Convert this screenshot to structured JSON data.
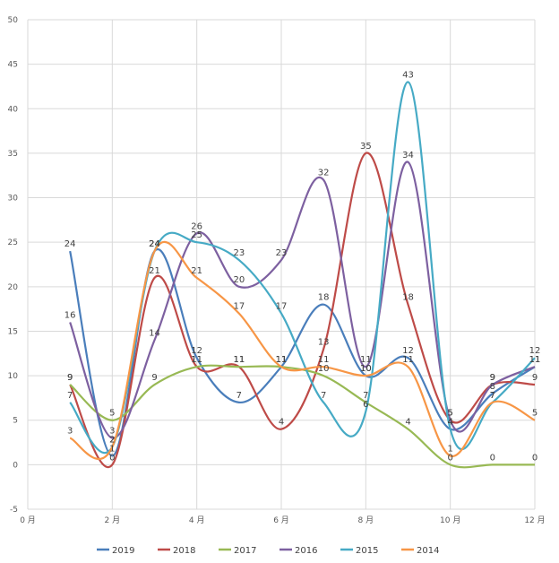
{
  "chart_data": {
    "type": "line",
    "title": "",
    "xlabel": "",
    "ylabel": "",
    "xlim": [
      0,
      12
    ],
    "ylim": [
      -5,
      50
    ],
    "x_ticks": [
      0,
      2,
      4,
      6,
      8,
      10,
      12
    ],
    "x_tick_labels": [
      "0 月",
      "2 月",
      "4 月",
      "6 月",
      "8 月",
      "10 月",
      "12 月"
    ],
    "y_ticks": [
      -5,
      0,
      5,
      10,
      15,
      20,
      25,
      30,
      35,
      40,
      45,
      50
    ],
    "y_tick_labels": [
      "-5",
      "0",
      "5",
      "10",
      "15",
      "20",
      "25",
      "30",
      "35",
      "40",
      "45",
      "50"
    ],
    "grid": true,
    "legend_position": "bottom",
    "x": [
      1,
      2,
      3,
      4,
      5,
      6,
      7,
      8,
      9,
      10,
      11,
      12
    ],
    "series": [
      {
        "name": "2019",
        "color": "#4a7ebb",
        "values": [
          24,
          1,
          24,
          12,
          7,
          11,
          18,
          10,
          12,
          4,
          8,
          11
        ]
      },
      {
        "name": "2018",
        "color": "#be4b48",
        "values": [
          9,
          0,
          21,
          11,
          11,
          4,
          13,
          35,
          18,
          5,
          9,
          9
        ]
      },
      {
        "name": "2017",
        "color": "#98b954",
        "values": [
          9,
          5,
          9,
          11,
          11,
          11,
          10,
          7,
          4,
          0,
          0,
          0
        ]
      },
      {
        "name": "2016",
        "color": "#7d60a0",
        "values": [
          16,
          3,
          14,
          26,
          20,
          23,
          32,
          11,
          34,
          5,
          9,
          11
        ]
      },
      {
        "name": "2015",
        "color": "#46aac5",
        "values": [
          7,
          2,
          24,
          25,
          23,
          17,
          7,
          6,
          43,
          4,
          7,
          12
        ]
      },
      {
        "name": "2014",
        "color": "#f79646",
        "values": [
          3,
          2,
          24,
          21,
          17,
          11,
          11,
          10,
          11,
          1,
          7,
          5
        ]
      }
    ]
  }
}
